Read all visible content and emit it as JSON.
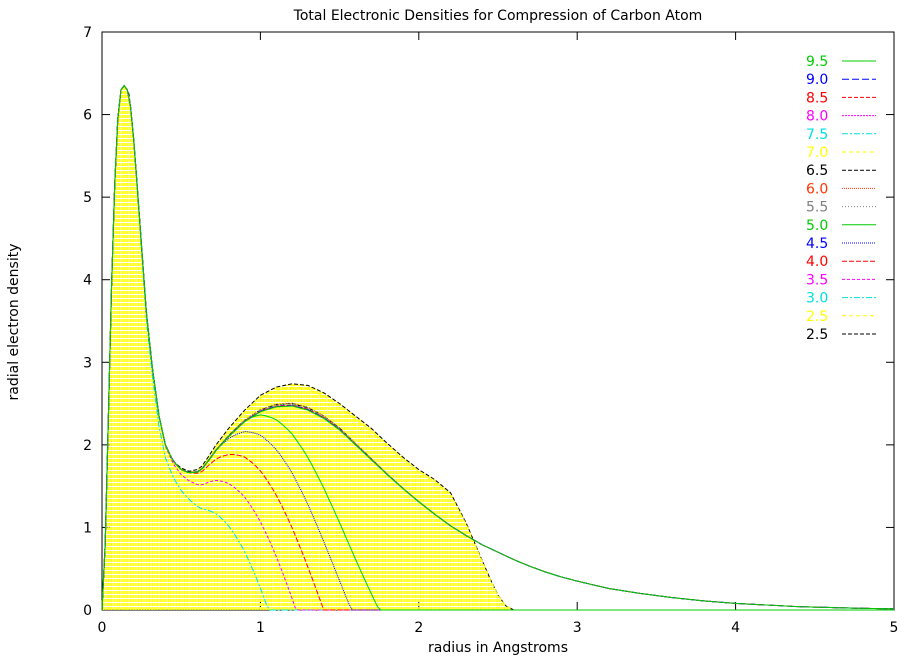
{
  "chart_data": {
    "type": "line",
    "title": "Total Electronic Densities for Compression of Carbon Atom",
    "xlabel": "radius in Angstroms",
    "ylabel": "radial electron density",
    "xlim": [
      0,
      5
    ],
    "ylim": [
      0,
      7
    ],
    "x_ticks": [
      "0",
      "1",
      "2",
      "3",
      "4",
      "5"
    ],
    "y_ticks": [
      "0",
      "1",
      "2",
      "3",
      "4",
      "5",
      "6",
      "7"
    ],
    "legend_position": "top-right",
    "series": [
      {
        "name": "9.5",
        "color": "#00cc00",
        "dash": "",
        "cutoff": 9.5
      },
      {
        "name": "9.0",
        "color": "#0000ff",
        "dash": "7,3",
        "cutoff": 9.0
      },
      {
        "name": "8.5",
        "color": "#ff0000",
        "dash": "4,2",
        "cutoff": 8.5
      },
      {
        "name": "8.0",
        "color": "#ff00ff",
        "dash": "2,1",
        "cutoff": 8.0
      },
      {
        "name": "7.5",
        "color": "#00e0e0",
        "dash": "6,2,2,2",
        "cutoff": 7.5
      },
      {
        "name": "7.0",
        "color": "#ffff00",
        "dash": "4,3",
        "cutoff": 7.0
      },
      {
        "name": "6.5",
        "color": "#000000",
        "dash": "4,2",
        "cutoff": 6.5
      },
      {
        "name": "6.0",
        "color": "#ff3300",
        "dash": "1,1",
        "cutoff": 6.0
      },
      {
        "name": "5.5",
        "color": "#808080",
        "dash": "1,2",
        "cutoff": 5.5
      },
      {
        "name": "5.0",
        "color": "#00cc00",
        "dash": "",
        "cutoff": 5.0
      },
      {
        "name": "4.5",
        "color": "#0000ff",
        "dash": "1,1",
        "cutoff": 4.5
      },
      {
        "name": "4.0",
        "color": "#ff0000",
        "dash": "5,2",
        "cutoff": 4.0
      },
      {
        "name": "3.5",
        "color": "#ff00ff",
        "dash": "3,2",
        "cutoff": 3.5
      },
      {
        "name": "3.0",
        "color": "#00e0e0",
        "dash": "6,2,2,2",
        "cutoff": 3.0
      },
      {
        "name": "2.5",
        "color": "#ffff00",
        "dash": "4,3",
        "cutoff": 2.5,
        "filled": true
      },
      {
        "name": "2.5",
        "color": "#000000",
        "dash": "4,2",
        "cutoff": 2.5
      }
    ],
    "base_curve": {
      "x": [
        0,
        0.02,
        0.04,
        0.06,
        0.08,
        0.1,
        0.12,
        0.14,
        0.16,
        0.17,
        0.18,
        0.2,
        0.22,
        0.25,
        0.28,
        0.32,
        0.36,
        0.4,
        0.45,
        0.5,
        0.55,
        0.6,
        0.63,
        0.67,
        0.72,
        0.8,
        0.9,
        1.0,
        1.1,
        1.2,
        1.3,
        1.4,
        1.5,
        1.6,
        1.7,
        1.8,
        1.9,
        2.0,
        2.1,
        2.2,
        2.3,
        2.4,
        2.5,
        2.6,
        2.7,
        2.8,
        2.9,
        3.0,
        3.2,
        3.4,
        3.6,
        3.8,
        4.0,
        4.2,
        4.4,
        4.6,
        4.8,
        5.0
      ],
      "y": [
        0,
        0.8,
        2.3,
        3.9,
        5.15,
        5.95,
        6.3,
        6.35,
        6.3,
        6.25,
        6.1,
        5.7,
        5.2,
        4.4,
        3.6,
        2.9,
        2.35,
        2.0,
        1.8,
        1.7,
        1.66,
        1.67,
        1.7,
        1.8,
        1.93,
        2.1,
        2.28,
        2.4,
        2.46,
        2.47,
        2.42,
        2.32,
        2.18,
        2.0,
        1.82,
        1.64,
        1.47,
        1.31,
        1.16,
        1.02,
        0.9,
        0.79,
        0.7,
        0.61,
        0.53,
        0.46,
        0.4,
        0.35,
        0.26,
        0.2,
        0.15,
        0.11,
        0.08,
        0.06,
        0.04,
        0.03,
        0.02,
        0.015
      ]
    },
    "compressed_2_5": {
      "x": [
        0,
        0.02,
        0.04,
        0.06,
        0.08,
        0.1,
        0.12,
        0.14,
        0.16,
        0.17,
        0.18,
        0.2,
        0.22,
        0.25,
        0.28,
        0.32,
        0.36,
        0.4,
        0.45,
        0.5,
        0.55,
        0.6,
        0.63,
        0.67,
        0.72,
        0.8,
        0.9,
        1.0,
        1.1,
        1.2,
        1.3,
        1.4,
        1.5,
        1.6,
        1.7,
        1.8,
        1.9,
        2.0,
        2.1,
        2.2,
        2.3,
        2.4,
        2.45,
        2.5,
        2.55,
        2.6
      ],
      "y": [
        0,
        0.8,
        2.3,
        3.9,
        5.15,
        5.95,
        6.3,
        6.35,
        6.3,
        6.25,
        6.1,
        5.7,
        5.2,
        4.4,
        3.6,
        2.9,
        2.35,
        2.0,
        1.8,
        1.72,
        1.68,
        1.7,
        1.74,
        1.85,
        2.0,
        2.2,
        2.42,
        2.6,
        2.7,
        2.74,
        2.72,
        2.63,
        2.5,
        2.35,
        2.2,
        2.02,
        1.85,
        1.7,
        1.58,
        1.42,
        1.05,
        0.6,
        0.38,
        0.18,
        0.05,
        0
      ]
    }
  }
}
